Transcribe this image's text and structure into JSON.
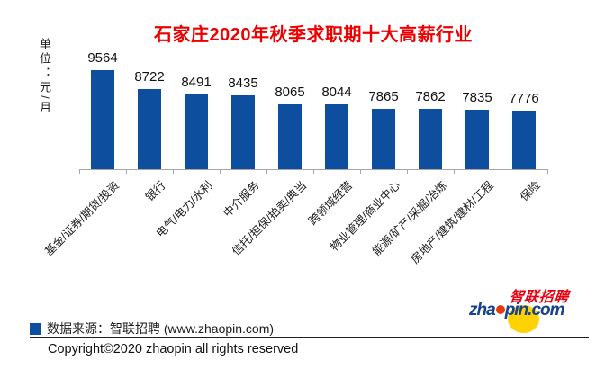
{
  "chart_data": {
    "type": "bar",
    "title": "石家庄2020年秋季求职期十大高薪行业",
    "unit_label": "单位：元/月",
    "categories": [
      "基金/证券/期货/投资",
      "银行",
      "电气/电力/水利",
      "中介服务",
      "信托/担保/拍卖/典当",
      "跨领域经营",
      "物业管理/商业中心",
      "能源/矿产/采掘/冶炼",
      "房地产/建筑/建材/工程",
      "保险"
    ],
    "values": [
      9564,
      8722,
      8491,
      8435,
      8065,
      8044,
      7865,
      7862,
      7835,
      7776
    ],
    "xlabel": "",
    "ylabel": "单位：元/月",
    "ylim": [
      5200,
      9600
    ],
    "grid": false,
    "legend_position": "none",
    "value_labels": true,
    "bar_color": "#0d4e9e",
    "axis_color": "#a6a6a6",
    "title_color": "#ee0000"
  },
  "legend": {
    "source_text": "数据来源：智联招聘 (www.zhaopin.com)",
    "swatch_color": "#0d4e9e"
  },
  "footer": {
    "copyright": "Copyright©2020 zhaopin all rights reserved"
  },
  "logo": {
    "word_prefix": "zha",
    "word_suffix": "pin.com",
    "cjk": "智联招聘",
    "wordmark_color": "#16418f",
    "dot_color": "#e8380d",
    "circle_color": "#ffd303",
    "cjk_color": "#e60012"
  }
}
